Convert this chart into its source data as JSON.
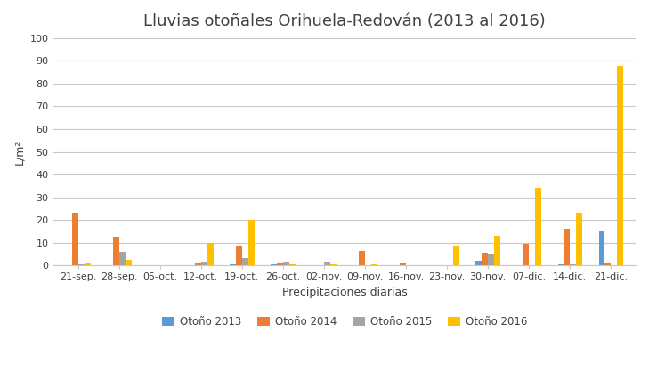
{
  "title": "Lluvias otoñales Orihuela-Redován (2013 al 2016)",
  "xlabel": "Precipitaciones diarias",
  "ylabel": "L/m²",
  "ylim": [
    0,
    100
  ],
  "yticks": [
    0,
    10,
    20,
    30,
    40,
    50,
    60,
    70,
    80,
    90,
    100
  ],
  "categories": [
    "21-sep.",
    "28-sep.",
    "05-oct.",
    "12-oct.",
    "19-oct.",
    "26-oct.",
    "02-nov.",
    "09-nov.",
    "16-nov.",
    "23-nov.",
    "30-nov.",
    "07-dic.",
    "14-dic.",
    "21-dic."
  ],
  "series": [
    {
      "name": "Otoño 2013",
      "color": "#5B9BD5",
      "values": [
        0,
        0,
        0,
        0,
        0.5,
        0.5,
        0,
        0,
        0,
        0,
        2,
        0,
        0.5,
        15
      ]
    },
    {
      "name": "Otoño 2014",
      "color": "#ED7D31",
      "values": [
        23,
        12.5,
        0,
        1,
        8.5,
        1,
        0,
        6.5,
        1,
        0,
        5.5,
        9.5,
        16,
        1
      ]
    },
    {
      "name": "Otoño 2015",
      "color": "#A5A5A5",
      "values": [
        0.5,
        6,
        0,
        1.5,
        3,
        1.5,
        1.5,
        0,
        0,
        0,
        5,
        0,
        0.5,
        0
      ]
    },
    {
      "name": "Otoño 2016",
      "color": "#FFC000",
      "values": [
        1,
        2.5,
        0,
        10,
        20,
        0.5,
        0.5,
        0.5,
        0,
        8.5,
        13,
        34,
        23,
        88
      ]
    }
  ],
  "bar_width": 0.15,
  "background_color": "#FFFFFF",
  "grid_color": "#C8C8C8",
  "title_fontsize": 13,
  "axis_fontsize": 9,
  "tick_fontsize": 8,
  "legend_fontsize": 8.5
}
